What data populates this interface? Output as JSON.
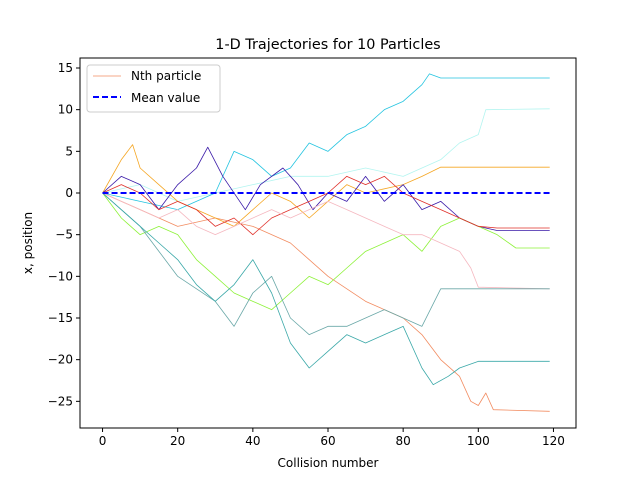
{
  "chart_data": {
    "type": "line",
    "title": "1-D Trajectories for 10 Particles",
    "xlabel": "Collision number",
    "ylabel": "x, position",
    "xlim": [
      -6,
      126
    ],
    "ylim": [
      -28.2,
      16.2
    ],
    "xticks": [
      0,
      20,
      40,
      60,
      80,
      100,
      120
    ],
    "yticks": [
      -25,
      -20,
      -15,
      -10,
      -5,
      0,
      5,
      10,
      15
    ],
    "grid": false,
    "legend": {
      "position": "top-left",
      "entries": [
        {
          "label": "Nth particle",
          "color": "#f28c61",
          "style": "solid"
        },
        {
          "label": "Mean value",
          "color": "#0000ff",
          "style": "dashed"
        }
      ]
    },
    "mean_value": {
      "name": "Mean value",
      "x": [
        0,
        119
      ],
      "y": [
        0,
        0
      ],
      "color": "#0000ff"
    },
    "series": [
      {
        "color": "#f28c61",
        "points": [
          [
            0,
            0
          ],
          [
            10,
            -2
          ],
          [
            20,
            -4
          ],
          [
            30,
            -3
          ],
          [
            40,
            -4
          ],
          [
            50,
            -6
          ],
          [
            60,
            -10
          ],
          [
            70,
            -13
          ],
          [
            80,
            -15
          ],
          [
            85,
            -17
          ],
          [
            90,
            -20
          ],
          [
            95,
            -22
          ],
          [
            98,
            -25
          ],
          [
            100,
            -25.5
          ],
          [
            102,
            -24
          ],
          [
            104,
            -26
          ],
          [
            119,
            -26.2
          ]
        ]
      },
      {
        "color": "#24c4e0",
        "points": [
          [
            0,
            0
          ],
          [
            10,
            -1
          ],
          [
            20,
            -2
          ],
          [
            30,
            0
          ],
          [
            35,
            5
          ],
          [
            40,
            4
          ],
          [
            45,
            2
          ],
          [
            50,
            3
          ],
          [
            55,
            6
          ],
          [
            60,
            5
          ],
          [
            65,
            7
          ],
          [
            70,
            8
          ],
          [
            75,
            10
          ],
          [
            80,
            11
          ],
          [
            85,
            13
          ],
          [
            87,
            14.3
          ],
          [
            90,
            13.8
          ],
          [
            119,
            13.8
          ]
        ]
      },
      {
        "color": "#b3f5f0",
        "points": [
          [
            0,
            0
          ],
          [
            10,
            1
          ],
          [
            20,
            -1
          ],
          [
            30,
            0
          ],
          [
            40,
            1
          ],
          [
            50,
            2
          ],
          [
            60,
            2
          ],
          [
            70,
            3
          ],
          [
            80,
            2
          ],
          [
            85,
            3
          ],
          [
            90,
            4
          ],
          [
            95,
            6
          ],
          [
            100,
            7
          ],
          [
            102,
            10
          ],
          [
            119,
            10.1
          ]
        ]
      },
      {
        "color": "#f5a623",
        "points": [
          [
            0,
            0
          ],
          [
            5,
            4
          ],
          [
            8,
            5.8
          ],
          [
            10,
            3
          ],
          [
            15,
            1
          ],
          [
            20,
            -1
          ],
          [
            25,
            -2
          ],
          [
            30,
            -3
          ],
          [
            35,
            -4
          ],
          [
            40,
            -2
          ],
          [
            45,
            0
          ],
          [
            50,
            -1
          ],
          [
            55,
            -3
          ],
          [
            60,
            -1
          ],
          [
            65,
            1
          ],
          [
            70,
            0
          ],
          [
            80,
            1
          ],
          [
            85,
            2
          ],
          [
            90,
            3.1
          ],
          [
            119,
            3.1
          ]
        ]
      },
      {
        "color": "#3a1aa8",
        "points": [
          [
            0,
            0
          ],
          [
            5,
            2
          ],
          [
            10,
            1
          ],
          [
            15,
            -2
          ],
          [
            20,
            1
          ],
          [
            25,
            3
          ],
          [
            28,
            5.5
          ],
          [
            32,
            2
          ],
          [
            38,
            -2
          ],
          [
            42,
            1
          ],
          [
            48,
            3
          ],
          [
            52,
            1
          ],
          [
            56,
            -2
          ],
          [
            60,
            0
          ],
          [
            65,
            -1
          ],
          [
            70,
            2
          ],
          [
            75,
            -1
          ],
          [
            80,
            1
          ],
          [
            85,
            -2
          ],
          [
            90,
            -1
          ],
          [
            95,
            -3
          ],
          [
            100,
            -4
          ],
          [
            105,
            -4.5
          ],
          [
            119,
            -4.5
          ]
        ]
      },
      {
        "color": "#8ef23a",
        "points": [
          [
            0,
            0
          ],
          [
            5,
            -3
          ],
          [
            10,
            -5
          ],
          [
            15,
            -4
          ],
          [
            20,
            -5
          ],
          [
            25,
            -8
          ],
          [
            30,
            -10
          ],
          [
            35,
            -12
          ],
          [
            40,
            -13
          ],
          [
            45,
            -14
          ],
          [
            50,
            -12
          ],
          [
            55,
            -10
          ],
          [
            60,
            -11
          ],
          [
            65,
            -9
          ],
          [
            70,
            -7
          ],
          [
            75,
            -6
          ],
          [
            80,
            -5
          ],
          [
            85,
            -7
          ],
          [
            90,
            -4
          ],
          [
            95,
            -3
          ],
          [
            100,
            -4
          ],
          [
            105,
            -5
          ],
          [
            110,
            -6.6
          ],
          [
            119,
            -6.6
          ]
        ]
      },
      {
        "color": "#e0302a",
        "points": [
          [
            0,
            0
          ],
          [
            5,
            1
          ],
          [
            10,
            0
          ],
          [
            15,
            -2
          ],
          [
            20,
            -1
          ],
          [
            25,
            -2
          ],
          [
            30,
            -4
          ],
          [
            35,
            -3
          ],
          [
            40,
            -5
          ],
          [
            45,
            -3
          ],
          [
            50,
            -2
          ],
          [
            55,
            -1
          ],
          [
            60,
            0
          ],
          [
            65,
            2
          ],
          [
            70,
            1
          ],
          [
            75,
            2
          ],
          [
            80,
            0
          ],
          [
            85,
            -1
          ],
          [
            90,
            -2
          ],
          [
            95,
            -3
          ],
          [
            100,
            -4
          ],
          [
            105,
            -4.2
          ],
          [
            119,
            -4.2
          ]
        ]
      },
      {
        "color": "#f5b8c0",
        "points": [
          [
            0,
            0
          ],
          [
            5,
            -1
          ],
          [
            10,
            -2
          ],
          [
            15,
            -3
          ],
          [
            20,
            -2
          ],
          [
            25,
            -4
          ],
          [
            30,
            -5
          ],
          [
            35,
            -4
          ],
          [
            40,
            -3
          ],
          [
            45,
            -2
          ],
          [
            50,
            -3
          ],
          [
            55,
            -2
          ],
          [
            60,
            -1
          ],
          [
            65,
            -2
          ],
          [
            70,
            -3
          ],
          [
            75,
            -4
          ],
          [
            80,
            -5
          ],
          [
            85,
            -5
          ],
          [
            90,
            -6
          ],
          [
            95,
            -7
          ],
          [
            98,
            -9
          ],
          [
            100,
            -11.3
          ],
          [
            119,
            -11.5
          ]
        ]
      },
      {
        "color": "#6aa8a8",
        "points": [
          [
            0,
            0
          ],
          [
            5,
            -2
          ],
          [
            10,
            -4
          ],
          [
            15,
            -7
          ],
          [
            20,
            -10
          ],
          [
            25,
            -11.5
          ],
          [
            30,
            -13
          ],
          [
            35,
            -16
          ],
          [
            40,
            -12
          ],
          [
            45,
            -10
          ],
          [
            50,
            -15
          ],
          [
            55,
            -17
          ],
          [
            60,
            -16
          ],
          [
            65,
            -16
          ],
          [
            70,
            -15
          ],
          [
            75,
            -14
          ],
          [
            80,
            -15
          ],
          [
            85,
            -16
          ],
          [
            90,
            -11.5
          ],
          [
            119,
            -11.5
          ]
        ]
      },
      {
        "color": "#3aa8a8",
        "points": [
          [
            0,
            0
          ],
          [
            5,
            -2
          ],
          [
            10,
            -4
          ],
          [
            15,
            -6
          ],
          [
            20,
            -8
          ],
          [
            25,
            -11
          ],
          [
            30,
            -13
          ],
          [
            35,
            -11
          ],
          [
            40,
            -8
          ],
          [
            45,
            -12
          ],
          [
            50,
            -18
          ],
          [
            55,
            -21
          ],
          [
            60,
            -19
          ],
          [
            65,
            -17
          ],
          [
            70,
            -18
          ],
          [
            75,
            -17
          ],
          [
            80,
            -16
          ],
          [
            85,
            -21
          ],
          [
            88,
            -23
          ],
          [
            92,
            -22
          ],
          [
            95,
            -21
          ],
          [
            100,
            -20.2
          ],
          [
            119,
            -20.2
          ]
        ]
      }
    ]
  }
}
